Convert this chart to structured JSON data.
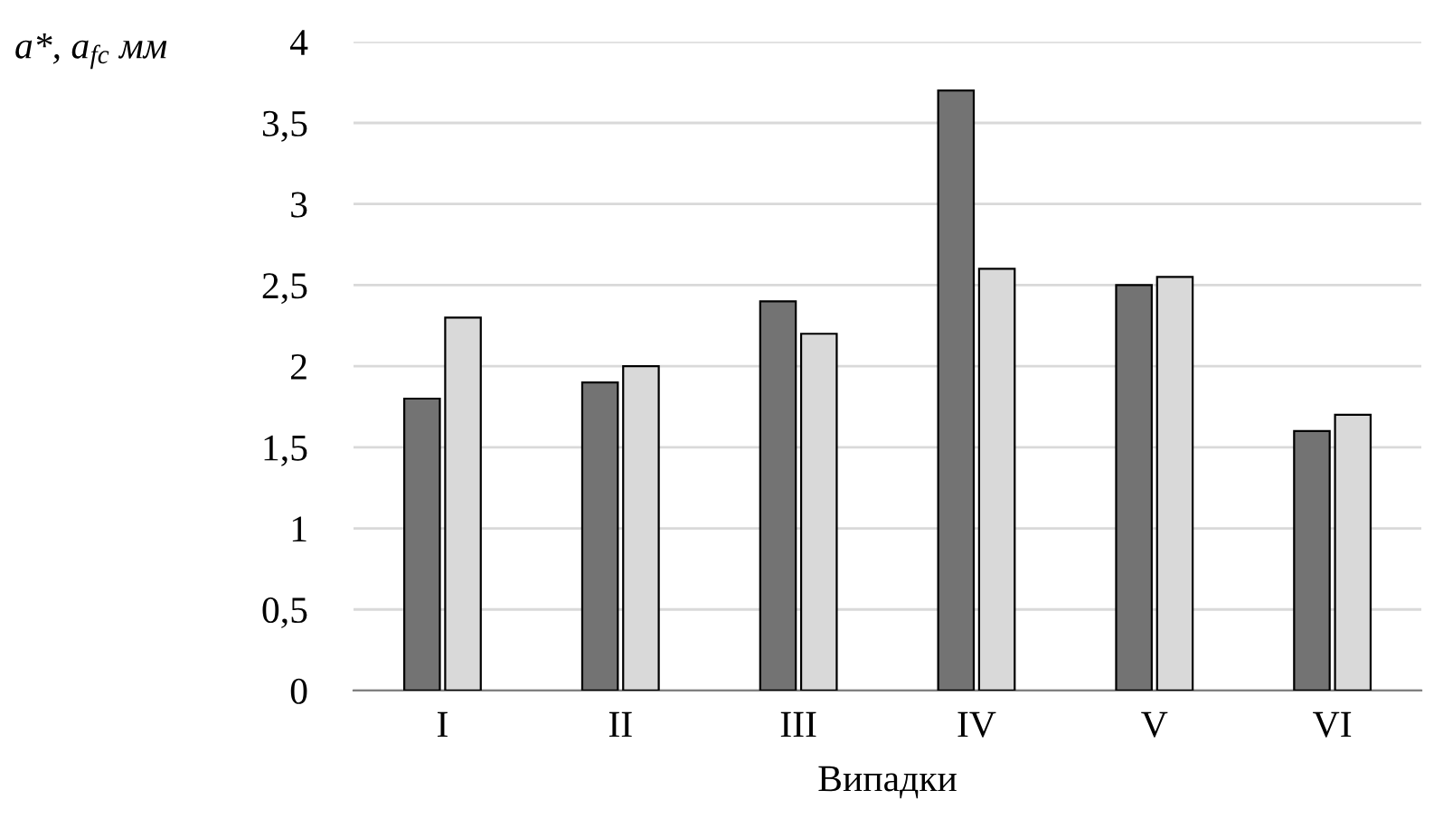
{
  "chart_data": {
    "type": "bar",
    "ylabel": "a*, a$_{fc}$ мм",
    "xlabel": "Випадки",
    "categories": [
      "I",
      "II",
      "III",
      "IV",
      "V",
      "VI"
    ],
    "series": [
      {
        "color": "#737373",
        "values": [
          1.8,
          1.9,
          2.4,
          3.7,
          2.5,
          1.6
        ]
      },
      {
        "color": "#d9d9d9",
        "values": [
          2.3,
          2.0,
          2.2,
          2.6,
          2.55,
          1.7
        ]
      }
    ],
    "ylim": [
      0,
      4
    ],
    "yticks": [
      0,
      {
        "value": 0.5,
        "label": "0,5"
      },
      1,
      {
        "value": 1.5,
        "label": "1,5"
      },
      2,
      {
        "value": 2.5,
        "label": "2,5"
      },
      3,
      {
        "value": 3.5,
        "label": "3,5"
      },
      4
    ],
    "grid": "y",
    "legend": false
  }
}
